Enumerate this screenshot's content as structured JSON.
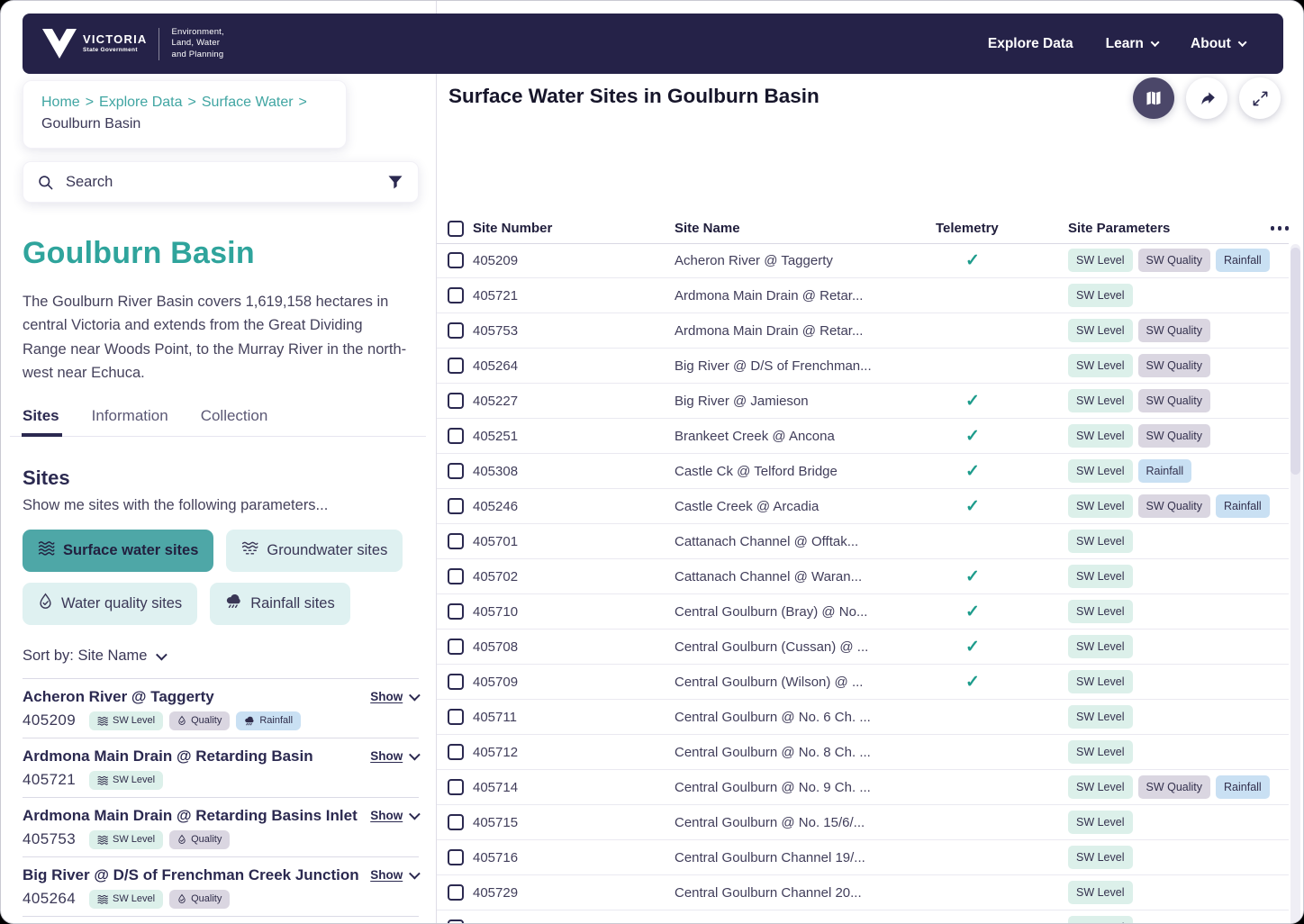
{
  "colors": {
    "navy": "#252248",
    "teal_heading": "#2FA49C",
    "teal_link": "#40A5A2",
    "chip_active_bg": "#4EA7A7",
    "chip_bg": "#DFF1F1",
    "badge_level_bg": "#DCF0EA",
    "badge_quality_bg": "#DAD6E1",
    "badge_rainfall_bg": "#C9E0F3",
    "telemetry_check": "#1E9C8C"
  },
  "header": {
    "brand": "VICTORIA",
    "brand_sub": "State Government",
    "department_lines": [
      "Environment,",
      "Land, Water",
      "and Planning"
    ],
    "nav": [
      {
        "label": "Explore Data",
        "caret": false
      },
      {
        "label": "Learn",
        "caret": true
      },
      {
        "label": "About",
        "caret": true
      }
    ]
  },
  "breadcrumb": {
    "links": [
      "Home",
      "Explore Data",
      "Surface Water"
    ],
    "separator": ">",
    "current": "Goulburn Basin"
  },
  "search": {
    "placeholder": "Search"
  },
  "left_panel": {
    "title": "Goulburn Basin",
    "description": "The Goulburn River Basin covers 1,619,158 hectares in central Victoria and extends from the Great Dividing Range near Woods Point, to the Murray River in the north-west near Echuca.",
    "tabs": [
      {
        "label": "Sites",
        "active": true
      },
      {
        "label": "Information",
        "active": false
      },
      {
        "label": "Collection",
        "active": false
      }
    ],
    "sites_heading": "Sites",
    "sites_subheading": "Show me sites with the following parameters...",
    "filters": [
      {
        "label": "Surface water sites",
        "icon": "surface-water-waves-icon",
        "active": true
      },
      {
        "label": "Groundwater sites",
        "icon": "groundwater-icon",
        "active": false
      },
      {
        "label": "Water quality sites",
        "icon": "droplet-check-icon",
        "active": false
      },
      {
        "label": "Rainfall sites",
        "icon": "rain-cloud-icon",
        "active": false
      }
    ],
    "sort_label": "Sort by:",
    "sort_value": "Site Name",
    "show_label": "Show",
    "sites": [
      {
        "name": "Acheron River @ Taggerty",
        "number": "405209",
        "badges": [
          "SW Level",
          "Quality",
          "Rainfall"
        ]
      },
      {
        "name": "Ardmona Main Drain @ Retarding Basin",
        "number": "405721",
        "badges": [
          "SW Level"
        ]
      },
      {
        "name": "Ardmona Main Drain @ Retarding Basins Inlet",
        "number": "405753",
        "badges": [
          "SW Level",
          "Quality"
        ]
      },
      {
        "name": "Big River @ D/S of Frenchman Creek Junction",
        "number": "405264",
        "badges": [
          "SW Level",
          "Quality"
        ]
      }
    ]
  },
  "main": {
    "title": "Surface Water Sites in Goulburn Basin",
    "toolbar": [
      {
        "name": "map-button",
        "active": true
      },
      {
        "name": "share-button",
        "active": false
      },
      {
        "name": "expand-button",
        "active": false
      }
    ],
    "table": {
      "columns": [
        "Site Number",
        "Site Name",
        "Telemetry",
        "Site Parameters"
      ],
      "rows": [
        {
          "number": "405209",
          "name": "Acheron River @ Taggerty",
          "telemetry": true,
          "params": [
            "SW Level",
            "SW Quality",
            "Rainfall"
          ]
        },
        {
          "number": "405721",
          "name": "Ardmona Main Drain @ Retar...",
          "telemetry": false,
          "params": [
            "SW Level"
          ]
        },
        {
          "number": "405753",
          "name": "Ardmona Main Drain @ Retar...",
          "telemetry": false,
          "params": [
            "SW Level",
            "SW Quality"
          ]
        },
        {
          "number": "405264",
          "name": "Big River @ D/S of Frenchman...",
          "telemetry": false,
          "params": [
            "SW Level",
            "SW Quality"
          ]
        },
        {
          "number": "405227",
          "name": "Big River @ Jamieson",
          "telemetry": true,
          "params": [
            "SW Level",
            "SW Quality"
          ]
        },
        {
          "number": "405251",
          "name": "Brankeet Creek @ Ancona",
          "telemetry": true,
          "params": [
            "SW Level",
            "SW Quality"
          ]
        },
        {
          "number": "405308",
          "name": "Castle Ck @ Telford Bridge",
          "telemetry": true,
          "params": [
            "SW Level",
            "Rainfall"
          ]
        },
        {
          "number": "405246",
          "name": "Castle Creek @ Arcadia",
          "telemetry": true,
          "params": [
            "SW Level",
            "SW Quality",
            "Rainfall"
          ]
        },
        {
          "number": "405701",
          "name": "Cattanach Channel @ Offtak...",
          "telemetry": false,
          "params": [
            "SW Level"
          ]
        },
        {
          "number": "405702",
          "name": "Cattanach Channel @ Waran...",
          "telemetry": true,
          "params": [
            "SW Level"
          ]
        },
        {
          "number": "405710",
          "name": "Central Goulburn (Bray) @ No...",
          "telemetry": true,
          "params": [
            "SW Level"
          ]
        },
        {
          "number": "405708",
          "name": "Central Goulburn (Cussan) @ ...",
          "telemetry": true,
          "params": [
            "SW Level"
          ]
        },
        {
          "number": "405709",
          "name": "Central Goulburn (Wilson) @ ...",
          "telemetry": true,
          "params": [
            "SW Level"
          ]
        },
        {
          "number": "405711",
          "name": "Central Goulburn @ No. 6 Ch. ...",
          "telemetry": false,
          "params": [
            "SW Level"
          ]
        },
        {
          "number": "405712",
          "name": "Central Goulburn @ No. 8 Ch. ...",
          "telemetry": false,
          "params": [
            "SW Level"
          ]
        },
        {
          "number": "405714",
          "name": "Central Goulburn @ No. 9 Ch. ...",
          "telemetry": false,
          "params": [
            "SW Level",
            "SW Quality",
            "Rainfall"
          ]
        },
        {
          "number": "405715",
          "name": "Central Goulburn @ No. 15/6/...",
          "telemetry": false,
          "params": [
            "SW Level"
          ]
        },
        {
          "number": "405716",
          "name": "Central Goulburn Channel 19/...",
          "telemetry": false,
          "params": [
            "SW Level"
          ]
        },
        {
          "number": "405729",
          "name": "Central Goulburn Channel 20...",
          "telemetry": false,
          "params": [
            "SW Level"
          ]
        },
        {
          "number": "",
          "name": "",
          "telemetry": false,
          "params": [
            "SW Level"
          ],
          "partial": true
        }
      ]
    }
  }
}
